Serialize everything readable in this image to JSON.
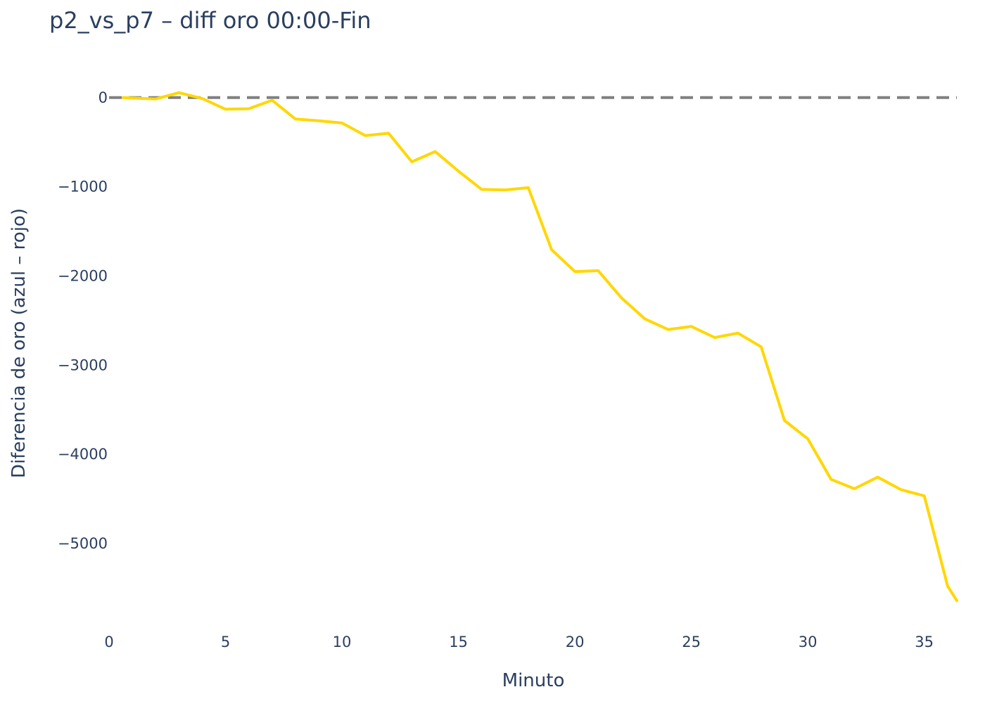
{
  "chart_data": {
    "type": "line",
    "title": "p2_vs_p7 – diff oro 00:00-Fin",
    "xlabel": "Minuto",
    "ylabel": "Diferencia de oro (azul – rojo)",
    "xlim": [
      0,
      36.4
    ],
    "ylim": [
      -5780,
      290
    ],
    "x_ticks": [
      0,
      5,
      10,
      15,
      20,
      25,
      30,
      35
    ],
    "y_ticks": [
      0,
      -1000,
      -2000,
      -3000,
      -4000,
      -5000
    ],
    "x_tick_labels": [
      "0",
      "5",
      "10",
      "15",
      "20",
      "25",
      "30",
      "35"
    ],
    "y_tick_labels": [
      "0",
      "−1000",
      "−2000",
      "−3000",
      "−4000",
      "−5000"
    ],
    "reference_line": {
      "y": 0,
      "style": "dashed",
      "color": "#808080"
    },
    "grid": false,
    "series": [
      {
        "color": "#FFD700",
        "x": [
          0.6,
          1,
          2,
          3,
          4,
          5,
          6,
          7,
          8,
          9,
          10,
          11,
          12,
          13,
          14,
          15,
          16,
          17,
          18,
          19,
          20,
          21,
          22,
          23,
          24,
          25,
          26,
          27,
          28,
          29,
          30,
          31,
          32,
          33,
          34,
          35,
          36,
          36.4
        ],
        "y": [
          0,
          -5,
          -15,
          55,
          -10,
          -130,
          -125,
          -30,
          -240,
          -260,
          -285,
          -425,
          -400,
          -720,
          -605,
          -825,
          -1030,
          -1035,
          -1010,
          -1705,
          -1950,
          -1940,
          -2245,
          -2480,
          -2600,
          -2565,
          -2690,
          -2640,
          -2795,
          -3620,
          -3825,
          -4280,
          -4385,
          -4255,
          -4395,
          -4465,
          -5475,
          -5640
        ]
      }
    ]
  }
}
